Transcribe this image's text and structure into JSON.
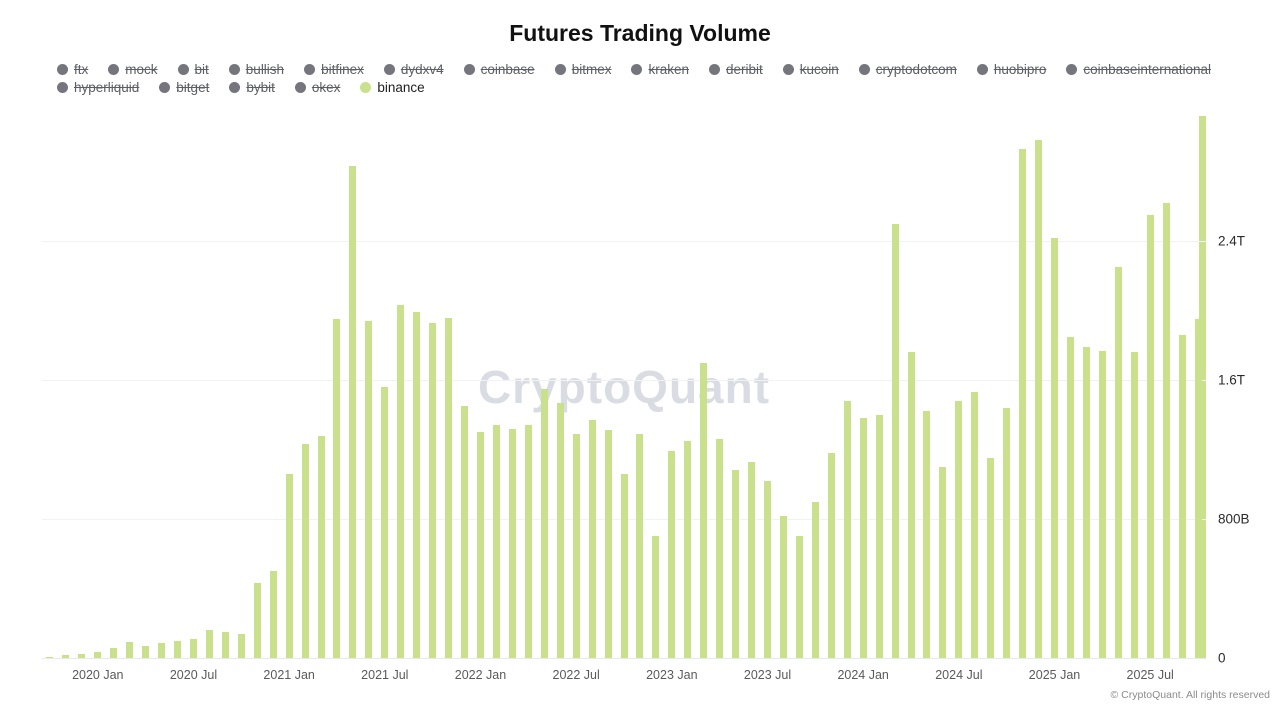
{
  "title": "Futures Trading Volume",
  "watermark": "CryptoQuant",
  "footer": "© CryptoQuant. All rights reserved",
  "colors": {
    "bar": "#c9e08d",
    "legend_inactive_dot": "#75757e",
    "legend_inactive_text": "#5c5f66",
    "legend_active_text": "#1f1f1f",
    "gridline": "#f2f2f2",
    "watermark": "#d9dde3",
    "axis_text": "#2b2b2b"
  },
  "legend": {
    "items": [
      {
        "label": "ftx",
        "active": false
      },
      {
        "label": "mock",
        "active": false
      },
      {
        "label": "bit",
        "active": false
      },
      {
        "label": "bullish",
        "active": false
      },
      {
        "label": "bitfinex",
        "active": false
      },
      {
        "label": "dydxv4",
        "active": false
      },
      {
        "label": "coinbase",
        "active": false
      },
      {
        "label": "bitmex",
        "active": false
      },
      {
        "label": "kraken",
        "active": false
      },
      {
        "label": "deribit",
        "active": false
      },
      {
        "label": "kucoin",
        "active": false
      },
      {
        "label": "cryptodotcom",
        "active": false
      },
      {
        "label": "huobipro",
        "active": false
      },
      {
        "label": "coinbaseinternational",
        "active": false
      },
      {
        "label": "hyperliquid",
        "active": false
      },
      {
        "label": "bitget",
        "active": false
      },
      {
        "label": "bybit",
        "active": false
      },
      {
        "label": "okex",
        "active": false
      },
      {
        "label": "binance",
        "active": true
      }
    ]
  },
  "y_axis": {
    "labels": [
      "0",
      "800B",
      "1.6T",
      "2.4T"
    ],
    "values_b": [
      0,
      800,
      1600,
      2400
    ]
  },
  "chart_data": {
    "type": "bar",
    "title": "Futures Trading Volume",
    "series_name": "binance",
    "unit": "USD (B = billions, T = trillions)",
    "ylim_b": [
      0,
      3120
    ],
    "grid": true,
    "legend_position": "top",
    "months": [
      "2019-10",
      "2019-11",
      "2019-12",
      "2020-01",
      "2020-02",
      "2020-03",
      "2020-04",
      "2020-05",
      "2020-06",
      "2020-07",
      "2020-08",
      "2020-09",
      "2020-10",
      "2020-11",
      "2020-12",
      "2021-01",
      "2021-02",
      "2021-03",
      "2021-04",
      "2021-05",
      "2021-06",
      "2021-07",
      "2021-08",
      "2021-09",
      "2021-10",
      "2021-11",
      "2021-12",
      "2022-01",
      "2022-02",
      "2022-03",
      "2022-04",
      "2022-05",
      "2022-06",
      "2022-07",
      "2022-08",
      "2022-09",
      "2022-10",
      "2022-11",
      "2022-12",
      "2023-01",
      "2023-02",
      "2023-03",
      "2023-04",
      "2023-05",
      "2023-06",
      "2023-07",
      "2023-08",
      "2023-09",
      "2023-10",
      "2023-11",
      "2023-12",
      "2024-01",
      "2024-02",
      "2024-03",
      "2024-04",
      "2024-05",
      "2024-06",
      "2024-07",
      "2024-08",
      "2024-09",
      "2024-10",
      "2024-11",
      "2024-12",
      "2025-01",
      "2025-02",
      "2025-03",
      "2025-04",
      "2025-05",
      "2025-06",
      "2025-07",
      "2025-08",
      "2025-09",
      "2025-10"
    ],
    "values_b": [
      8,
      18,
      25,
      35,
      55,
      90,
      70,
      85,
      100,
      110,
      160,
      150,
      140,
      430,
      500,
      1060,
      1230,
      1280,
      1950,
      2830,
      1940,
      1560,
      2030,
      1990,
      1930,
      1960,
      1450,
      1300,
      1340,
      1320,
      1340,
      1550,
      1470,
      1290,
      1370,
      1310,
      1060,
      1290,
      700,
      1190,
      1250,
      1700,
      1260,
      1080,
      1130,
      1020,
      820,
      700,
      900,
      1180,
      1480,
      1380,
      1400,
      2500,
      1760,
      1420,
      1100,
      1480,
      1530,
      1150,
      1440,
      2930,
      2980,
      2420,
      1850,
      1790,
      1770,
      2250,
      1760,
      2550,
      2620,
      1860,
      1950
    ],
    "x_tick_indices": [
      3,
      9,
      15,
      21,
      27,
      33,
      39,
      45,
      51,
      57,
      63,
      69
    ],
    "x_tick_labels": [
      "2020 Jan",
      "2020 Jul",
      "2021 Jan",
      "2021 Jul",
      "2022 Jan",
      "2022 Jul",
      "2023 Jan",
      "2023 Jul",
      "2024 Jan",
      "2024 Jul",
      "2025 Jan",
      "2025 Jul"
    ],
    "right_edge_bar_full_height": true
  }
}
